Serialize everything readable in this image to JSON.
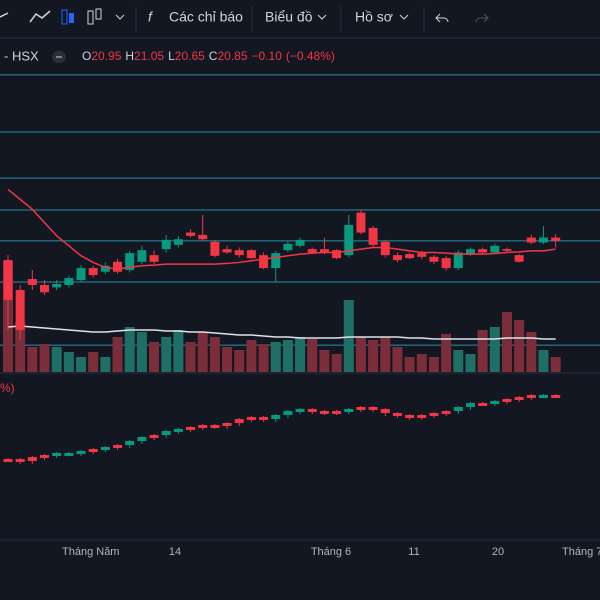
{
  "toolbar": {
    "indicators": "Các chỉ báo",
    "chart": "Biểu đồ",
    "profile": "Hồ sơ"
  },
  "legend": {
    "symbol": "- HSX",
    "open_label": "O",
    "open": "20.95",
    "high_label": "H",
    "high": "21.05",
    "low_label": "L",
    "low": "20.65",
    "close_label": "C",
    "close": "20.85",
    "change": "−0.10",
    "change_pct": "(−0.48%)"
  },
  "lower_pane_label": "%)",
  "x_labels": [
    "Tháng Năm",
    "14",
    "Tháng 6",
    "11",
    "20",
    "Tháng 7"
  ],
  "chart_data": {
    "type": "candlestick",
    "ylim": [
      16.9,
      26.9
    ],
    "levels": [
      25.85,
      24.13,
      22.74,
      21.78,
      20.85,
      19.61,
      17.71
    ],
    "up_color": "#089981",
    "down_color": "#f23645",
    "ma_color": "#f23645",
    "vol_ma_color": "#e0e3eb",
    "level_color": "#2a8ea8",
    "open": [
      20.27,
      19.37,
      19.7,
      19.52,
      19.45,
      19.52,
      19.67,
      20.03,
      19.92,
      20.22,
      19.97,
      20.22,
      20.42,
      20.6,
      20.73,
      21.1,
      21.03,
      20.82,
      20.6,
      20.57,
      20.57,
      20.42,
      20.03,
      20.57,
      20.7,
      20.6,
      20.6,
      20.57,
      20.42,
      21.7,
      21.24,
      20.82,
      20.42,
      20.45,
      20.48,
      20.37,
      20.33,
      20.03,
      20.45,
      20.6,
      20.5,
      20.6,
      20.42,
      20.95,
      20.8,
      20.95
    ],
    "high": [
      20.42,
      19.52,
      19.97,
      19.67,
      19.67,
      19.8,
      20.12,
      20.1,
      20.2,
      20.3,
      20.55,
      20.7,
      20.57,
      21.03,
      21.0,
      21.2,
      21.63,
      20.88,
      20.7,
      20.65,
      20.6,
      20.5,
      20.55,
      20.85,
      20.95,
      20.65,
      20.95,
      20.6,
      21.63,
      21.8,
      21.3,
      20.88,
      20.5,
      20.5,
      20.55,
      20.42,
      20.4,
      20.57,
      20.65,
      20.65,
      20.76,
      20.65,
      20.45,
      21.03,
      21.3,
      21.05
    ],
    "low": [
      18.17,
      17.86,
      19.37,
      19.22,
      19.37,
      19.45,
      19.6,
      19.75,
      19.85,
      19.85,
      19.9,
      20.15,
      20.15,
      20.5,
      20.65,
      20.95,
      20.85,
      20.35,
      20.45,
      20.35,
      20.3,
      20.0,
      19.62,
      20.5,
      20.65,
      20.45,
      20.45,
      20.3,
      20.35,
      21.05,
      20.65,
      20.35,
      20.2,
      20.3,
      20.3,
      20.15,
      19.95,
      19.97,
      20.4,
      20.45,
      20.45,
      20.5,
      20.2,
      20.75,
      20.75,
      20.65
    ],
    "close": [
      19.07,
      18.17,
      19.52,
      19.3,
      19.55,
      19.73,
      20.03,
      19.82,
      20.1,
      19.92,
      20.48,
      20.57,
      20.22,
      20.88,
      20.9,
      21.0,
      20.9,
      20.4,
      20.5,
      20.42,
      20.33,
      20.03,
      20.48,
      20.76,
      20.88,
      20.5,
      20.5,
      20.33,
      21.33,
      21.1,
      20.73,
      20.42,
      20.27,
      20.33,
      20.37,
      20.22,
      20.03,
      20.5,
      20.6,
      20.5,
      20.7,
      20.55,
      20.22,
      20.8,
      20.95,
      20.85
    ],
    "ma": [
      22.4,
      22.1,
      21.8,
      21.4,
      21.0,
      20.7,
      20.4,
      20.2,
      20.05,
      20.0,
      20.05,
      20.1,
      20.12,
      20.15,
      20.15,
      20.15,
      20.15,
      20.15,
      20.17,
      20.2,
      20.25,
      20.3,
      20.35,
      20.4,
      20.45,
      20.48,
      20.5,
      20.5,
      20.55,
      20.6,
      20.65,
      20.65,
      20.6,
      20.55,
      20.5,
      20.5,
      20.48,
      20.45,
      20.45,
      20.45,
      20.47,
      20.5,
      20.52,
      20.55,
      20.55,
      20.6
    ],
    "vol_ylim": [
      0,
      120
    ],
    "volume": [
      110,
      50,
      25,
      28,
      25,
      20,
      15,
      20,
      15,
      35,
      45,
      40,
      30,
      35,
      42,
      30,
      40,
      35,
      25,
      22,
      32,
      28,
      30,
      32,
      35,
      33,
      22,
      18,
      72,
      35,
      32,
      35,
      25,
      15,
      18,
      15,
      38,
      22,
      18,
      42,
      45,
      60,
      52,
      40,
      22,
      15
    ],
    "vol_ma": [
      45,
      46,
      45,
      44,
      43,
      42,
      41,
      40,
      40,
      41,
      42,
      42,
      42,
      41,
      41,
      40,
      40,
      39,
      38,
      37,
      37,
      36,
      35,
      35,
      34,
      34,
      34,
      34,
      35,
      35,
      35,
      35,
      35,
      34,
      34,
      33,
      33,
      33,
      33,
      33,
      33,
      34,
      34,
      34,
      33,
      33
    ],
    "lower_ylim": [
      0,
      145
    ],
    "lower": [
      70,
      68,
      72,
      74,
      76,
      76,
      78,
      80,
      82,
      84,
      88,
      92,
      94,
      98,
      100,
      102,
      104,
      103,
      106,
      110,
      112,
      110,
      114,
      118,
      120,
      118,
      117,
      118,
      120,
      122,
      120,
      116,
      114,
      112,
      114,
      116,
      118,
      122,
      126,
      126,
      128,
      130,
      132,
      134,
      134,
      134
    ]
  }
}
